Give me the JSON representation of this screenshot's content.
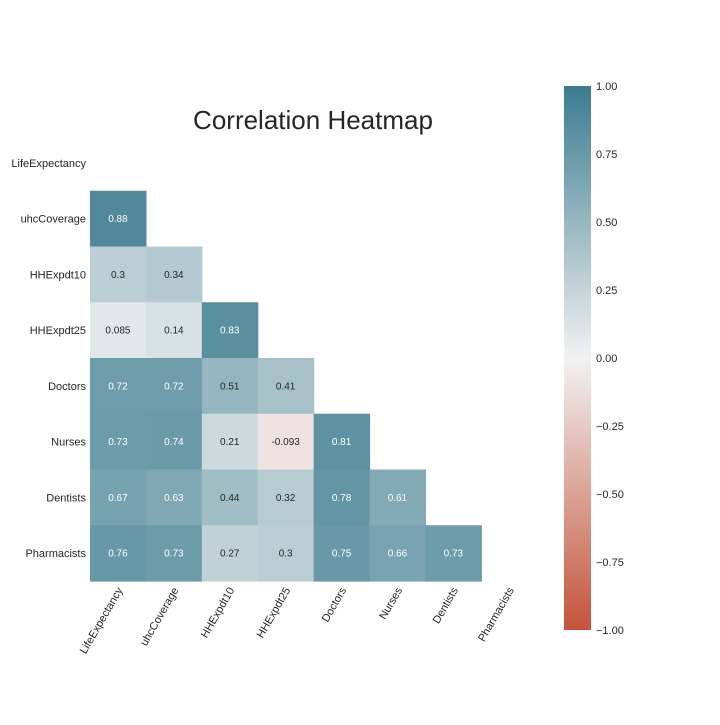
{
  "chart_data": {
    "type": "heatmap",
    "title": "Correlation Heatmap",
    "variables": [
      "LifeExpectancy",
      "uhcCoverage",
      "HHExpdt10",
      "HHExpdt25",
      "Doctors",
      "Nurses",
      "Dentists",
      "Pharmacists"
    ],
    "mask": "upper-triangle-including-diagonal",
    "cells": [
      {
        "row": "uhcCoverage",
        "col": "LifeExpectancy",
        "value": 0.88,
        "label": "0.88"
      },
      {
        "row": "HHExpdt10",
        "col": "LifeExpectancy",
        "value": 0.3,
        "label": "0.3"
      },
      {
        "row": "HHExpdt10",
        "col": "uhcCoverage",
        "value": 0.34,
        "label": "0.34"
      },
      {
        "row": "HHExpdt25",
        "col": "LifeExpectancy",
        "value": 0.085,
        "label": "0.085"
      },
      {
        "row": "HHExpdt25",
        "col": "uhcCoverage",
        "value": 0.14,
        "label": "0.14"
      },
      {
        "row": "HHExpdt25",
        "col": "HHExpdt10",
        "value": 0.83,
        "label": "0.83"
      },
      {
        "row": "Doctors",
        "col": "LifeExpectancy",
        "value": 0.72,
        "label": "0.72"
      },
      {
        "row": "Doctors",
        "col": "uhcCoverage",
        "value": 0.72,
        "label": "0.72"
      },
      {
        "row": "Doctors",
        "col": "HHExpdt10",
        "value": 0.51,
        "label": "0.51"
      },
      {
        "row": "Doctors",
        "col": "HHExpdt25",
        "value": 0.41,
        "label": "0.41"
      },
      {
        "row": "Nurses",
        "col": "LifeExpectancy",
        "value": 0.73,
        "label": "0.73"
      },
      {
        "row": "Nurses",
        "col": "uhcCoverage",
        "value": 0.74,
        "label": "0.74"
      },
      {
        "row": "Nurses",
        "col": "HHExpdt10",
        "value": 0.21,
        "label": "0.21"
      },
      {
        "row": "Nurses",
        "col": "HHExpdt25",
        "value": -0.093,
        "label": "-0.093"
      },
      {
        "row": "Nurses",
        "col": "Doctors",
        "value": 0.81,
        "label": "0.81"
      },
      {
        "row": "Dentists",
        "col": "LifeExpectancy",
        "value": 0.67,
        "label": "0.67"
      },
      {
        "row": "Dentists",
        "col": "uhcCoverage",
        "value": 0.63,
        "label": "0.63"
      },
      {
        "row": "Dentists",
        "col": "HHExpdt10",
        "value": 0.44,
        "label": "0.44"
      },
      {
        "row": "Dentists",
        "col": "HHExpdt25",
        "value": 0.32,
        "label": "0.32"
      },
      {
        "row": "Dentists",
        "col": "Doctors",
        "value": 0.78,
        "label": "0.78"
      },
      {
        "row": "Dentists",
        "col": "Nurses",
        "value": 0.61,
        "label": "0.61"
      },
      {
        "row": "Pharmacists",
        "col": "LifeExpectancy",
        "value": 0.76,
        "label": "0.76"
      },
      {
        "row": "Pharmacists",
        "col": "uhcCoverage",
        "value": 0.73,
        "label": "0.73"
      },
      {
        "row": "Pharmacists",
        "col": "HHExpdt10",
        "value": 0.27,
        "label": "0.27"
      },
      {
        "row": "Pharmacists",
        "col": "HHExpdt25",
        "value": 0.3,
        "label": "0.3"
      },
      {
        "row": "Pharmacists",
        "col": "Doctors",
        "value": 0.75,
        "label": "0.75"
      },
      {
        "row": "Pharmacists",
        "col": "Nurses",
        "value": 0.66,
        "label": "0.66"
      },
      {
        "row": "Pharmacists",
        "col": "Dentists",
        "value": 0.73,
        "label": "0.73"
      }
    ],
    "colorbar": {
      "range": [
        -1,
        1
      ],
      "ticks": [
        1.0,
        0.75,
        0.5,
        0.25,
        0.0,
        -0.25,
        -0.5,
        -0.75,
        -1.0
      ],
      "tick_labels": [
        "1.00",
        "0.75",
        "0.50",
        "0.25",
        "0.00",
        "−0.25",
        "−0.50",
        "−0.75",
        "−1.00"
      ],
      "colors": {
        "positive": "#3b7b8f",
        "neutral": "#f2f2f2",
        "negative": "#c4533a"
      }
    },
    "grid": false
  }
}
